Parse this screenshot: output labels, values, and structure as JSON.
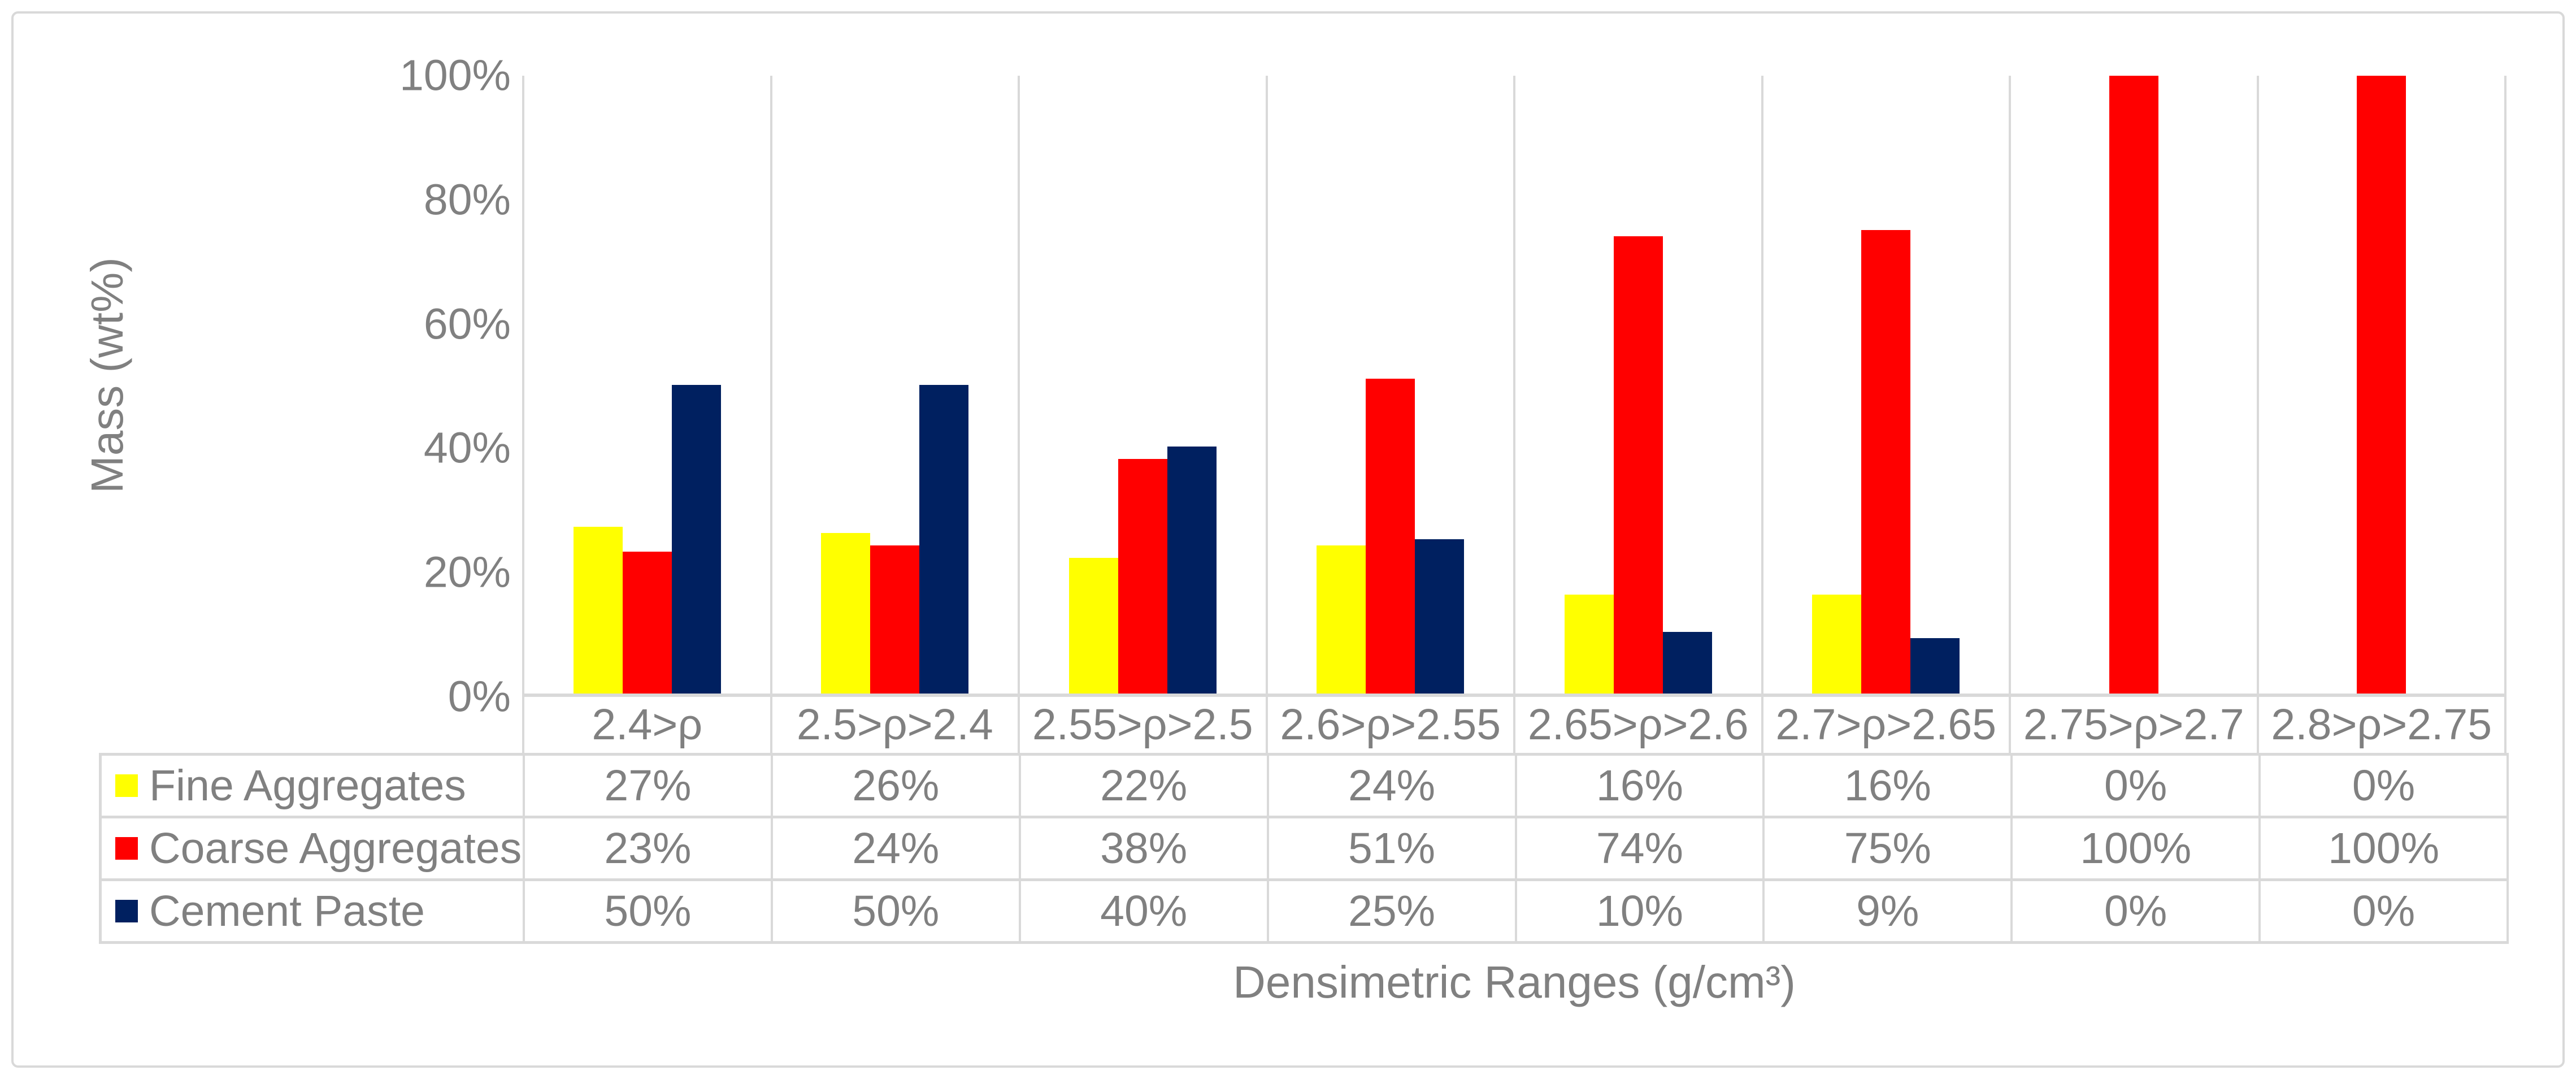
{
  "chart_data": {
    "type": "bar",
    "title": "",
    "categories": [
      "2.4>ρ",
      "2.5>ρ>2.4",
      "2.55>ρ>2.5",
      "2.6>ρ>2.55",
      "2.65>ρ>2.6",
      "2.7>ρ>2.65",
      "2.75>ρ>2.7",
      "2.8>ρ>2.75"
    ],
    "series": [
      {
        "name": "Fine Aggregates",
        "color": "#FFFF00",
        "values": [
          27,
          26,
          22,
          24,
          16,
          16,
          0,
          0
        ]
      },
      {
        "name": "Coarse Aggregates",
        "color": "#FF0000",
        "values": [
          23,
          24,
          38,
          51,
          74,
          75,
          100,
          100
        ]
      },
      {
        "name": "Cement Paste",
        "color": "#002060",
        "values": [
          50,
          50,
          40,
          25,
          10,
          9,
          0,
          0
        ]
      }
    ],
    "xlabel": "Densimetric Ranges (g/cm³)",
    "ylabel": "Mass (wt%)",
    "ylim": [
      0,
      100
    ],
    "ytick_labels": [
      "100%",
      "80%",
      "60%",
      "40%",
      "20%",
      "0%"
    ],
    "gridlines": "vertical-category-separators-only",
    "legend_position": "table-first-column"
  },
  "table": {
    "rows": [
      {
        "label": "Fine Aggregates",
        "swatch_color": "#FFFF00",
        "cells": [
          "27%",
          "26%",
          "22%",
          "24%",
          "16%",
          "16%",
          "0%",
          "0%"
        ]
      },
      {
        "label": "Coarse Aggregates",
        "swatch_color": "#FF0000",
        "cells": [
          "23%",
          "24%",
          "38%",
          "51%",
          "74%",
          "75%",
          "100%",
          "100%"
        ]
      },
      {
        "label": "Cement Paste",
        "swatch_color": "#002060",
        "cells": [
          "50%",
          "50%",
          "40%",
          "25%",
          "10%",
          "9%",
          "0%",
          "0%"
        ]
      }
    ]
  },
  "colors": {
    "text": "#808080",
    "grid": "#D9D9D9",
    "background": "#FFFFFF"
  }
}
